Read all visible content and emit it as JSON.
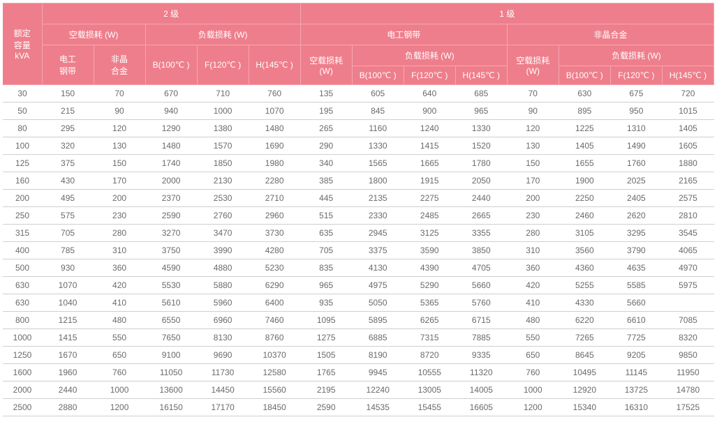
{
  "header": {
    "rated_capacity_line1": "额定",
    "rated_capacity_line2": "容量",
    "rated_capacity_line3": "kVA",
    "level2": "2 级",
    "level1": "1 级",
    "noload_loss_w": "空载损耗 (W)",
    "load_loss_w": "负载损耗 (W)",
    "steel_strip": "电工钢带",
    "amorphous_alloy": "非晶合金",
    "steel_strip_2l": "电工\n钢带",
    "amorphous_alloy_2l": "非晶\n合金",
    "noload_loss_2l": "空载损耗\n(W)",
    "b100": "B(100℃ )",
    "f120": "F(120℃ )",
    "h145": "H(145℃ )"
  },
  "rows": [
    [
      "30",
      "150",
      "70",
      "670",
      "710",
      "760",
      "135",
      "605",
      "640",
      "685",
      "70",
      "630",
      "675",
      "720"
    ],
    [
      "50",
      "215",
      "90",
      "940",
      "1000",
      "1070",
      "195",
      "845",
      "900",
      "965",
      "90",
      "895",
      "950",
      "1015"
    ],
    [
      "80",
      "295",
      "120",
      "1290",
      "1380",
      "1480",
      "265",
      "1160",
      "1240",
      "1330",
      "120",
      "1225",
      "1310",
      "1405"
    ],
    [
      "100",
      "320",
      "130",
      "1480",
      "1570",
      "1690",
      "290",
      "1330",
      "1415",
      "1520",
      "130",
      "1405",
      "1490",
      "1605"
    ],
    [
      "125",
      "375",
      "150",
      "1740",
      "1850",
      "1980",
      "340",
      "1565",
      "1665",
      "1780",
      "150",
      "1655",
      "1760",
      "1880"
    ],
    [
      "160",
      "430",
      "170",
      "2000",
      "2130",
      "2280",
      "385",
      "1800",
      "1915",
      "2050",
      "170",
      "1900",
      "2025",
      "2165"
    ],
    [
      "200",
      "495",
      "200",
      "2370",
      "2530",
      "2710",
      "445",
      "2135",
      "2275",
      "2440",
      "200",
      "2250",
      "2405",
      "2575"
    ],
    [
      "250",
      "575",
      "230",
      "2590",
      "2760",
      "2960",
      "515",
      "2330",
      "2485",
      "2665",
      "230",
      "2460",
      "2620",
      "2810"
    ],
    [
      "315",
      "705",
      "280",
      "3270",
      "3470",
      "3730",
      "635",
      "2945",
      "3125",
      "3355",
      "280",
      "3105",
      "3295",
      "3545"
    ],
    [
      "400",
      "785",
      "310",
      "3750",
      "3990",
      "4280",
      "705",
      "3375",
      "3590",
      "3850",
      "310",
      "3560",
      "3790",
      "4065"
    ],
    [
      "500",
      "930",
      "360",
      "4590",
      "4880",
      "5230",
      "835",
      "4130",
      "4390",
      "4705",
      "360",
      "4360",
      "4635",
      "4970"
    ],
    [
      "630",
      "1070",
      "420",
      "5530",
      "5880",
      "6290",
      "965",
      "4975",
      "5290",
      "5660",
      "420",
      "5255",
      "5585",
      "5975"
    ],
    [
      "630",
      "1040",
      "410",
      "5610",
      "5960",
      "6400",
      "935",
      "5050",
      "5365",
      "5760",
      "410",
      "4330",
      "5660",
      ""
    ],
    [
      "800",
      "1215",
      "480",
      "6550",
      "6960",
      "7460",
      "1095",
      "5895",
      "6265",
      "6715",
      "480",
      "6220",
      "6610",
      "7085"
    ],
    [
      "1000",
      "1415",
      "550",
      "7650",
      "8130",
      "8760",
      "1275",
      "6885",
      "7315",
      "7885",
      "550",
      "7265",
      "7725",
      "8320"
    ],
    [
      "1250",
      "1670",
      "650",
      "9100",
      "9690",
      "10370",
      "1505",
      "8190",
      "8720",
      "9335",
      "650",
      "8645",
      "9205",
      "9850"
    ],
    [
      "1600",
      "1960",
      "760",
      "11050",
      "11730",
      "12580",
      "1765",
      "9945",
      "10555",
      "11320",
      "760",
      "10495",
      "11145",
      "11950"
    ],
    [
      "2000",
      "2440",
      "1000",
      "13600",
      "14450",
      "15560",
      "2195",
      "12240",
      "13005",
      "14005",
      "1000",
      "12920",
      "13725",
      "14780"
    ],
    [
      "2500",
      "2880",
      "1200",
      "16150",
      "17170",
      "18450",
      "2590",
      "14535",
      "15455",
      "16605",
      "1200",
      "15340",
      "16310",
      "17525"
    ]
  ]
}
